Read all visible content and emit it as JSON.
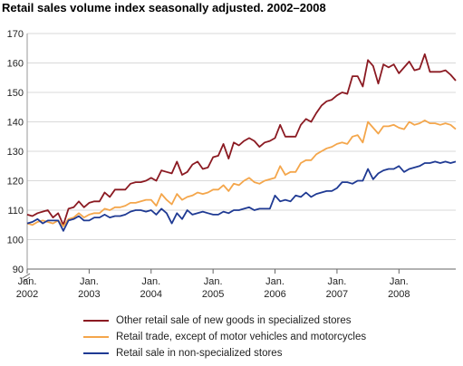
{
  "chart_data": {
    "type": "line",
    "title": "Retail sales volume index seasonally adjusted. 2002–2008",
    "xlabel": "",
    "ylabel": "",
    "ylim": [
      90,
      170
    ],
    "yticks": [
      90,
      100,
      110,
      120,
      130,
      140,
      150,
      160,
      170
    ],
    "axis_break": true,
    "grid": true,
    "legend_position": "bottom",
    "x_ticks": [
      {
        "month": "Jan.",
        "year": "2002"
      },
      {
        "month": "Jan.",
        "year": "2003"
      },
      {
        "month": "Jan.",
        "year": "2004"
      },
      {
        "month": "Jan.",
        "year": "2005"
      },
      {
        "month": "Jan.",
        "year": "2006"
      },
      {
        "month": "Jan.",
        "year": "2007"
      },
      {
        "month": "Jan.",
        "year": "2008"
      }
    ],
    "x_start": "2002-01",
    "frequency": "monthly",
    "series": [
      {
        "name": "Other retail sale of new goods in specialized stores",
        "color": "#8b1a22",
        "values": [
          108.5,
          108,
          109,
          109.5,
          110,
          107.5,
          109,
          105,
          110.5,
          111,
          113,
          111,
          112.5,
          113,
          113,
          116,
          114.5,
          117,
          117,
          117,
          119,
          119.5,
          119.5,
          120,
          121,
          120,
          123.5,
          123,
          122.5,
          126.5,
          122,
          123,
          125.5,
          126.5,
          124,
          124.5,
          128,
          128.5,
          132.5,
          127.5,
          133,
          132,
          133.5,
          134.5,
          133.5,
          131.5,
          133,
          133.5,
          134.5,
          139,
          135,
          135,
          135,
          139,
          141,
          140,
          143,
          145.5,
          147,
          147.5,
          149,
          150,
          149.5,
          155.5,
          155.5,
          152,
          161,
          159,
          153,
          159.5,
          158.5,
          159.5,
          156.5,
          158.5,
          160.5,
          157.5,
          158,
          163,
          157,
          157,
          157,
          157.5,
          156,
          154
        ]
      },
      {
        "name": "Retail trade, except of motor vehicles and motorcycles",
        "color": "#f4a64b",
        "values": [
          105.5,
          105,
          106,
          106.5,
          106,
          105.5,
          106.5,
          104.5,
          107,
          107.5,
          109,
          107.5,
          108.5,
          109,
          109,
          110.5,
          110,
          111,
          111,
          111.5,
          112.5,
          112.5,
          113,
          113.5,
          113.5,
          111.5,
          115.5,
          113.5,
          112,
          115.5,
          113.5,
          114.5,
          115,
          116,
          115.5,
          116,
          117,
          117,
          118.5,
          116.5,
          119,
          118.5,
          120,
          121,
          119.5,
          119,
          120,
          120.5,
          121,
          125,
          122,
          123,
          123,
          126,
          127,
          127,
          129,
          130,
          131,
          131.5,
          132.5,
          133,
          132.5,
          135,
          135.5,
          133,
          140,
          138,
          136,
          138.5,
          138.5,
          139,
          138,
          137.5,
          140,
          139,
          139.5,
          140.5,
          139.5,
          139.5,
          139,
          139.5,
          139,
          137.5
        ]
      },
      {
        "name": "Retail sale in non-specialized stores",
        "color": "#1f3a93",
        "values": [
          105.5,
          106,
          107,
          105.5,
          106.5,
          106.5,
          106.5,
          103,
          106.5,
          107,
          108,
          106.5,
          106.5,
          107.5,
          107.5,
          108.5,
          107.5,
          108,
          108,
          108.5,
          109.5,
          110,
          110,
          109.5,
          110,
          108.5,
          110.5,
          109,
          105.5,
          109,
          107,
          110,
          108.5,
          109,
          109.5,
          109,
          108.5,
          108.5,
          109.5,
          109,
          110,
          110,
          110.5,
          111,
          110,
          110.5,
          110.5,
          110.5,
          115,
          113,
          113.5,
          113,
          115,
          114.5,
          116,
          114.5,
          115.5,
          116,
          116.5,
          116.5,
          117.5,
          119.5,
          119.5,
          119,
          120,
          120,
          124,
          120.5,
          122.5,
          123.5,
          124,
          124,
          125,
          123,
          124,
          124.5,
          125,
          126,
          126,
          126.5,
          126,
          126.5,
          126,
          126.5
        ]
      }
    ]
  }
}
